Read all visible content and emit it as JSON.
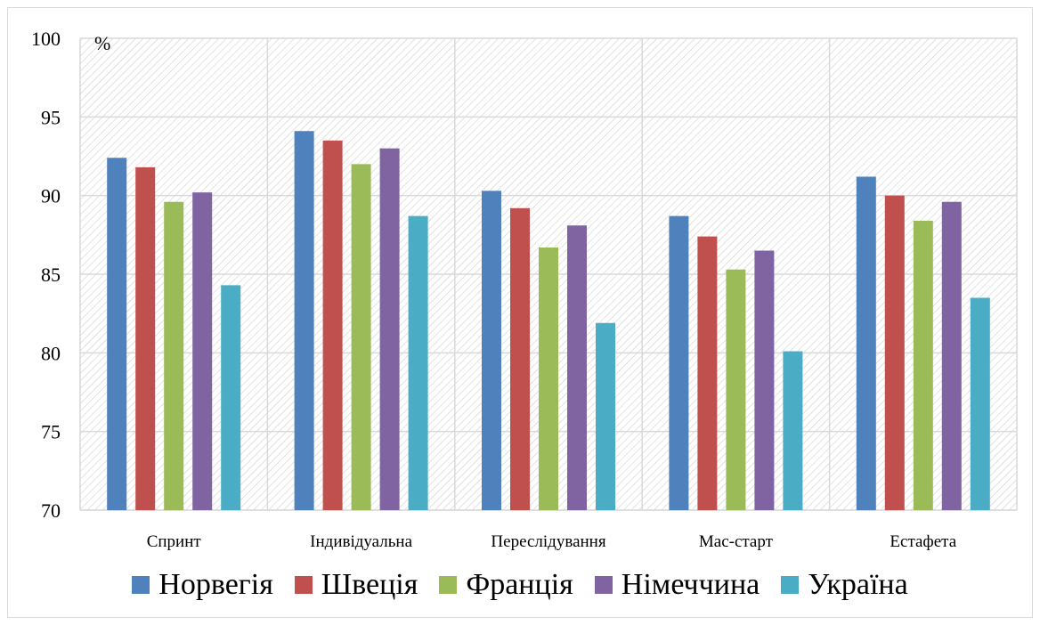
{
  "chart_data": {
    "type": "bar",
    "title": "",
    "xlabel": "",
    "ylabel": "",
    "unit_label": "%",
    "categories": [
      "Спринт",
      "Індивідуальна",
      "Переслідування",
      "Мас-старт",
      "Естафета"
    ],
    "series": [
      {
        "name": "Норвегія",
        "color": "#4f81bd",
        "values": [
          92.4,
          94.1,
          90.3,
          88.7,
          91.2
        ]
      },
      {
        "name": "Швеція",
        "color": "#c0504d",
        "values": [
          91.8,
          93.5,
          89.2,
          87.4,
          90.0
        ]
      },
      {
        "name": "Франція",
        "color": "#9bbb59",
        "values": [
          89.6,
          92.0,
          86.7,
          85.3,
          88.4
        ]
      },
      {
        "name": "Німеччина",
        "color": "#8064a2",
        "values": [
          90.2,
          93.0,
          88.1,
          86.5,
          89.6
        ]
      },
      {
        "name": "Україна",
        "color": "#4bacc6",
        "values": [
          84.3,
          88.7,
          81.9,
          80.1,
          83.5
        ]
      }
    ],
    "ylim": [
      70,
      100
    ],
    "yticks": [
      70,
      75,
      80,
      85,
      90,
      95,
      100
    ],
    "grid": true,
    "plot_background": "hatched",
    "legend_position": "bottom"
  }
}
